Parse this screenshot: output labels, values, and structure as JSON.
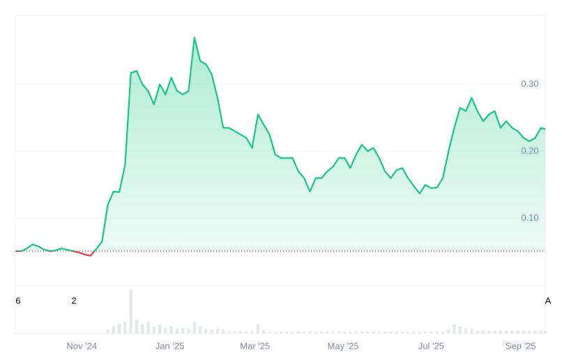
{
  "chart_data": {
    "type": "line",
    "x": [
      0,
      4,
      8,
      12,
      16,
      20,
      24,
      28,
      32,
      36,
      40,
      44,
      48,
      52,
      56,
      60,
      64,
      68,
      72,
      76,
      80,
      84,
      88,
      92,
      96,
      100,
      104,
      108,
      112,
      116,
      120,
      124,
      128,
      132,
      136,
      140,
      144,
      148,
      152,
      156,
      160,
      164,
      168,
      172,
      176,
      180,
      184,
      188,
      192,
      196,
      200,
      204,
      208,
      212,
      216,
      220,
      224,
      228,
      232,
      236,
      240,
      244,
      248,
      252,
      256,
      260,
      264,
      268,
      272,
      276,
      280,
      284,
      288,
      292,
      296,
      300,
      304,
      308,
      312,
      316,
      320,
      324,
      328,
      332,
      336,
      340,
      344,
      348,
      352,
      356,
      360,
      364,
      367
    ],
    "series": [
      {
        "color": "#16c784",
        "below_color": "#ea3943",
        "values": [
          0.051,
          0.051,
          0.055,
          0.061,
          0.058,
          0.053,
          0.051,
          0.052,
          0.055,
          0.053,
          0.051,
          0.049,
          0.046,
          0.044,
          0.054,
          0.065,
          0.12,
          0.14,
          0.139,
          0.18,
          0.317,
          0.32,
          0.3,
          0.29,
          0.27,
          0.3,
          0.285,
          0.31,
          0.29,
          0.285,
          0.29,
          0.37,
          0.335,
          0.33,
          0.315,
          0.28,
          0.235,
          0.235,
          0.23,
          0.225,
          0.22,
          0.205,
          0.255,
          0.24,
          0.225,
          0.195,
          0.19,
          0.19,
          0.19,
          0.17,
          0.16,
          0.14,
          0.16,
          0.16,
          0.17,
          0.177,
          0.19,
          0.19,
          0.175,
          0.195,
          0.21,
          0.2,
          0.205,
          0.19,
          0.17,
          0.16,
          0.172,
          0.175,
          0.16,
          0.148,
          0.137,
          0.15,
          0.145,
          0.146,
          0.16,
          0.2,
          0.235,
          0.265,
          0.26,
          0.28,
          0.26,
          0.245,
          0.255,
          0.26,
          0.235,
          0.245,
          0.235,
          0.23,
          0.22,
          0.215,
          0.22,
          0.235,
          0.233
        ]
      }
    ],
    "baseline": 0.051,
    "xlim": [
      0,
      367
    ],
    "xticks": [
      {
        "value": 46,
        "label": "Nov '24"
      },
      {
        "value": 107,
        "label": "Jan '25"
      },
      {
        "value": 166,
        "label": "Mar '25"
      },
      {
        "value": 227,
        "label": "May '25"
      },
      {
        "value": 288,
        "label": "Jul '25"
      },
      {
        "value": 350,
        "label": "Sep '25"
      }
    ],
    "ylim": [
      0,
      0.403
    ],
    "yticks": [
      {
        "value": 0.1,
        "label": "0.10"
      },
      {
        "value": 0.2,
        "label": "0.20"
      },
      {
        "value": 0.3,
        "label": "0.30"
      }
    ],
    "grid": true,
    "volume": {
      "color": "#e3e6ea",
      "ylim": [
        0,
        100
      ],
      "values": [
        1,
        1,
        1,
        1,
        1,
        1,
        1,
        1,
        1,
        1,
        1,
        1,
        1,
        1,
        1,
        1,
        8,
        15,
        20,
        25,
        95,
        30,
        20,
        25,
        15,
        20,
        12,
        15,
        10,
        12,
        10,
        25,
        15,
        10,
        8,
        10,
        8,
        5,
        5,
        5,
        5,
        5,
        20,
        8,
        4,
        4,
        4,
        4,
        4,
        5,
        4,
        4,
        4,
        4,
        5,
        4,
        4,
        4,
        4,
        5,
        4,
        4,
        4,
        4,
        4,
        4,
        4,
        4,
        4,
        4,
        4,
        4,
        4,
        4,
        4,
        10,
        20,
        15,
        12,
        10,
        6,
        6,
        6,
        6,
        6,
        6,
        6,
        6,
        6,
        6,
        6,
        6,
        6
      ]
    },
    "annotations": [
      "6",
      "2",
      "A"
    ]
  }
}
